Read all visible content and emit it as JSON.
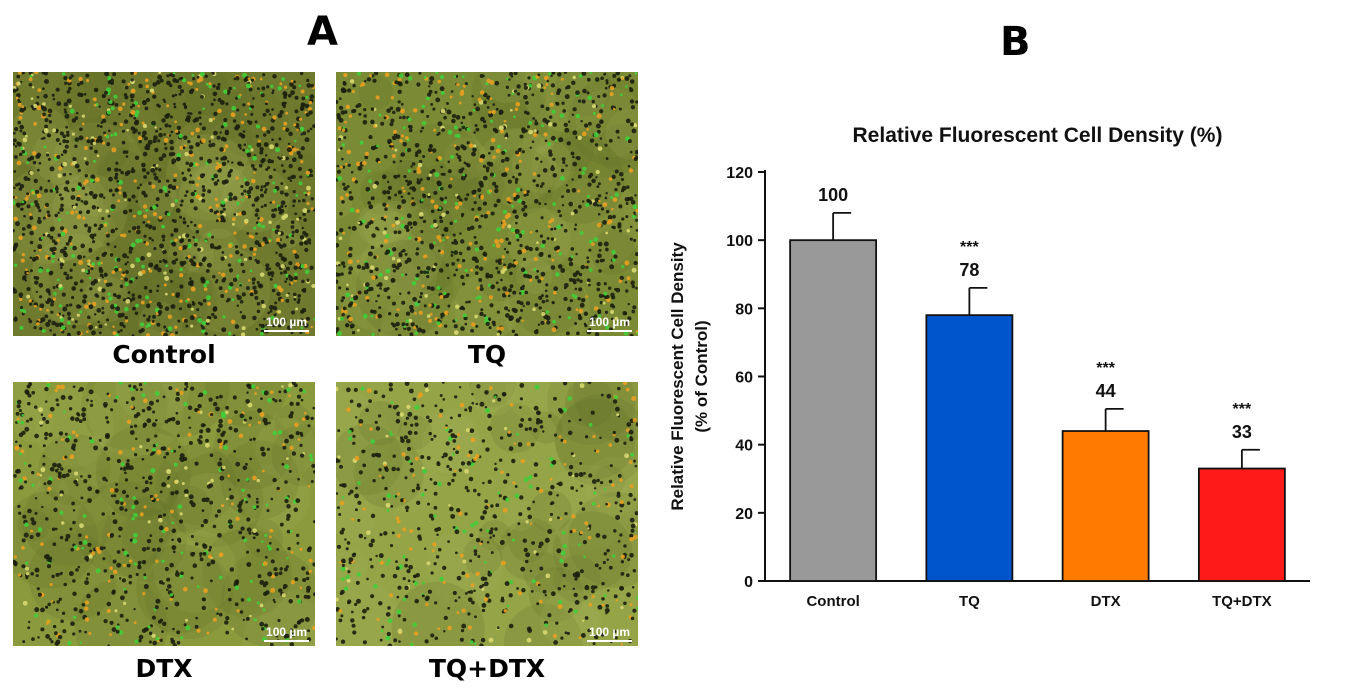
{
  "panels": {
    "a_letter": "A",
    "b_letter": "B"
  },
  "micrographs": [
    {
      "label": "Control",
      "scale_bar": "100 µm",
      "density": 1.0,
      "base_color": "#6f7a2e"
    },
    {
      "label": "TQ",
      "scale_bar": "100 µm",
      "density": 0.78,
      "base_color": "#7b8a34"
    },
    {
      "label": "DTX",
      "scale_bar": "100 µm",
      "density": 0.44,
      "base_color": "#8a9a3d"
    },
    {
      "label": "TQ+DTX",
      "scale_bar": "100 µm",
      "density": 0.33,
      "base_color": "#94a447"
    }
  ],
  "chart_data": {
    "type": "bar",
    "title": "Relative Fluorescent Cell Density (%)",
    "ylabel": "Relative Fluorescent Cell Density",
    "ylabel_sub": "(% of Control)",
    "xlabel": "",
    "categories": [
      "Control",
      "TQ",
      "DTX",
      "TQ+DTX"
    ],
    "values": [
      100,
      78,
      44,
      33
    ],
    "errors": [
      8,
      8,
      6.5,
      5.5
    ],
    "value_labels": [
      "100",
      "78",
      "44",
      "33"
    ],
    "significance": [
      "",
      "***",
      "***",
      "***"
    ],
    "colors": [
      "#999999",
      "#0055cc",
      "#ff7a00",
      "#ff1a1a"
    ],
    "ylim": [
      0,
      120
    ],
    "yticks": [
      0,
      20,
      40,
      60,
      80,
      100,
      120
    ],
    "grid": false,
    "legend": "none"
  }
}
